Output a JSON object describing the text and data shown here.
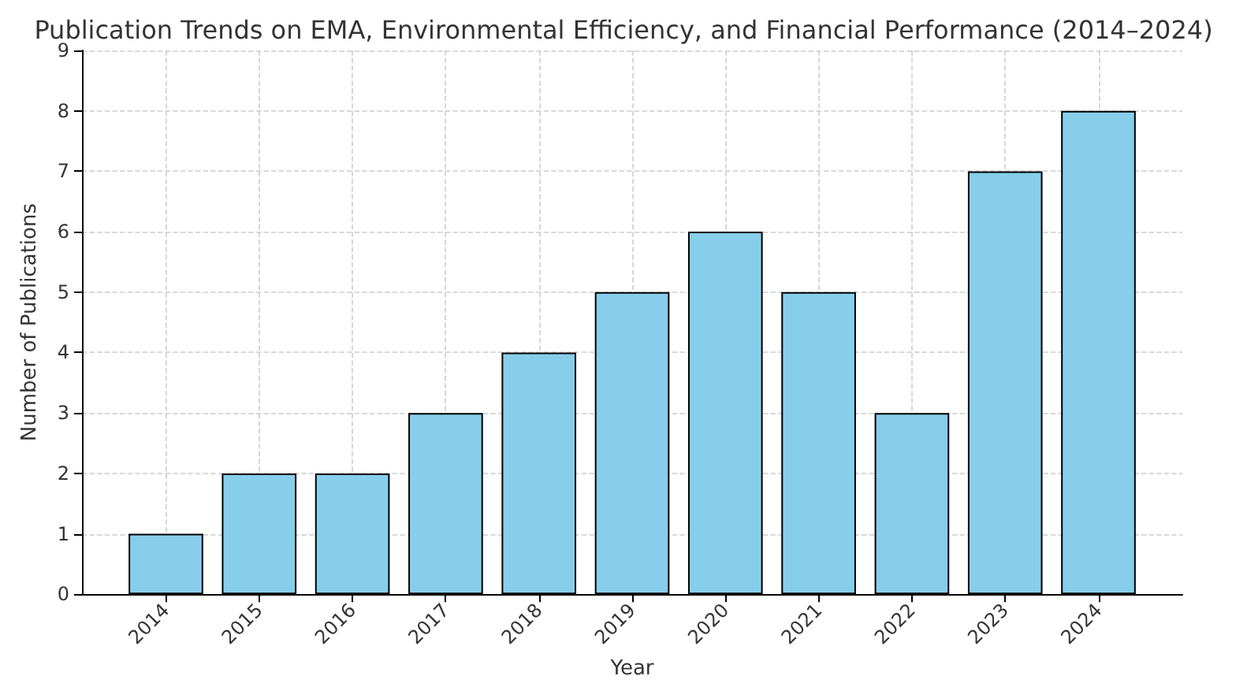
{
  "chart_data": {
    "type": "bar",
    "title": "Publication Trends on EMA, Environmental Efficiency, and Financial Performance (2014–2024)",
    "xlabel": "Year",
    "ylabel": "Number of Publications",
    "x": [
      2014,
      2015,
      2016,
      2017,
      2018,
      2019,
      2020,
      2021,
      2022,
      2023,
      2024
    ],
    "values": [
      1,
      2,
      2,
      3,
      4,
      5,
      6,
      5,
      3,
      7,
      8
    ],
    "color": "#87ceeb",
    "xlim": [
      2013.1,
      2024.9
    ],
    "xticks": [
      2014,
      2015,
      2016,
      2017,
      2018,
      2019,
      2020,
      2021,
      2022,
      2023,
      2024
    ],
    "ylim": [
      0,
      9
    ],
    "yticks": [
      0,
      1,
      2,
      3,
      4,
      5,
      6,
      7,
      8,
      9
    ],
    "grid": true
  }
}
